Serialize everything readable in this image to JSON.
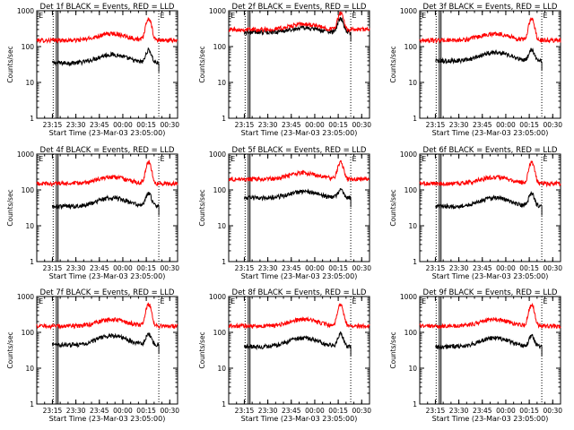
{
  "figure_title_hidden": "",
  "colors": {
    "events": "#000000",
    "lld": "#ff0000",
    "axis": "#000000"
  },
  "chart_data": [
    {
      "type": "line",
      "title": "Det 1f BLACK = Events, RED = LLD",
      "xlabel": "Start Time (23-Mar-03 23:05:00)",
      "ylabel": "Counts/sec",
      "xticks": [
        "23:15",
        "23:30",
        "23:45",
        "00:00",
        "00:15",
        "00:30"
      ],
      "yticks": [
        "1",
        "10",
        "100",
        "1000"
      ],
      "ylim": [
        1,
        1000
      ],
      "xlim_minutes": [
        0,
        90
      ],
      "marker_label": "E",
      "vlines_solid": [
        12.5,
        13.6
      ],
      "vlines_dotted": [
        10.5,
        78
      ],
      "series": [
        {
          "name": "Events",
          "start": 10,
          "end": 78,
          "base": 35,
          "peak": 60,
          "spike": 80
        },
        {
          "name": "LLD",
          "start": 0,
          "end": 90,
          "base": 150,
          "peak": 230,
          "spike": 600
        }
      ]
    },
    {
      "type": "line",
      "title": "Det 2f BLACK = Events, RED = LLD",
      "xlabel": "Start Time (23-Mar-03 23:05:00)",
      "ylabel": "Counts/sec",
      "xticks": [
        "23:15",
        "23:30",
        "23:45",
        "00:00",
        "00:15",
        "00:30"
      ],
      "yticks": [
        "1",
        "10",
        "100",
        "1000"
      ],
      "ylim": [
        1,
        1000
      ],
      "xlim_minutes": [
        0,
        90
      ],
      "marker_label": "E",
      "vlines_solid": [
        12.5,
        13.6
      ],
      "vlines_dotted": [
        10.5,
        78
      ],
      "series": [
        {
          "name": "Events",
          "start": 10,
          "end": 78,
          "base": 250,
          "peak": 330,
          "spike": 600
        },
        {
          "name": "LLD",
          "start": 0,
          "end": 90,
          "base": 300,
          "peak": 420,
          "spike": 850
        }
      ]
    },
    {
      "type": "line",
      "title": "Det 3f BLACK = Events, RED = LLD",
      "xlabel": "Start Time (23-Mar-03 23:05:00)",
      "ylabel": "Counts/sec",
      "xticks": [
        "23:15",
        "23:30",
        "23:45",
        "00:00",
        "00:15",
        "00:30"
      ],
      "yticks": [
        "1",
        "10",
        "100",
        "1000"
      ],
      "ylim": [
        1,
        1000
      ],
      "xlim_minutes": [
        0,
        90
      ],
      "marker_label": "E",
      "vlines_solid": [
        12.5,
        13.6
      ],
      "vlines_dotted": [
        10.5,
        78
      ],
      "series": [
        {
          "name": "Events",
          "start": 10,
          "end": 78,
          "base": 40,
          "peak": 70,
          "spike": 80
        },
        {
          "name": "LLD",
          "start": 0,
          "end": 90,
          "base": 150,
          "peak": 230,
          "spike": 600
        }
      ]
    },
    {
      "type": "line",
      "title": "Det 4f BLACK = Events, RED = LLD",
      "xlabel": "Start Time (23-Mar-03 23:05:00)",
      "ylabel": "Counts/sec",
      "xticks": [
        "23:15",
        "23:30",
        "23:45",
        "00:00",
        "00:15",
        "00:30"
      ],
      "yticks": [
        "1",
        "10",
        "100",
        "1000"
      ],
      "ylim": [
        1,
        1000
      ],
      "xlim_minutes": [
        0,
        90
      ],
      "marker_label": "E",
      "vlines_solid": [
        12.5,
        13.6
      ],
      "vlines_dotted": [
        10.5,
        78
      ],
      "series": [
        {
          "name": "Events",
          "start": 10,
          "end": 78,
          "base": 35,
          "peak": 60,
          "spike": 80
        },
        {
          "name": "LLD",
          "start": 0,
          "end": 90,
          "base": 150,
          "peak": 230,
          "spike": 600
        }
      ]
    },
    {
      "type": "line",
      "title": "Det 5f BLACK = Events, RED = LLD",
      "xlabel": "Start Time (23-Mar-03 23:05:00)",
      "ylabel": "Counts/sec",
      "xticks": [
        "23:15",
        "23:30",
        "23:45",
        "00:00",
        "00:15",
        "00:30"
      ],
      "yticks": [
        "1",
        "10",
        "100",
        "1000"
      ],
      "ylim": [
        1,
        1000
      ],
      "xlim_minutes": [
        0,
        90
      ],
      "marker_label": "E",
      "vlines_solid": [
        12.5,
        13.6
      ],
      "vlines_dotted": [
        10.5,
        78
      ],
      "series": [
        {
          "name": "Events",
          "start": 10,
          "end": 78,
          "base": 60,
          "peak": 90,
          "spike": 100
        },
        {
          "name": "LLD",
          "start": 0,
          "end": 90,
          "base": 200,
          "peak": 300,
          "spike": 600
        }
      ]
    },
    {
      "type": "line",
      "title": "Det 6f BLACK = Events, RED = LLD",
      "xlabel": "Start Time (23-Mar-03 23:05:00)",
      "ylabel": "Counts/sec",
      "xticks": [
        "23:15",
        "23:30",
        "23:45",
        "00:00",
        "00:15",
        "00:30"
      ],
      "yticks": [
        "1",
        "10",
        "100",
        "1000"
      ],
      "ylim": [
        1,
        1000
      ],
      "xlim_minutes": [
        0,
        90
      ],
      "marker_label": "E",
      "vlines_solid": [
        12.5,
        13.6
      ],
      "vlines_dotted": [
        10.5,
        78
      ],
      "series": [
        {
          "name": "Events",
          "start": 10,
          "end": 78,
          "base": 35,
          "peak": 60,
          "spike": 80
        },
        {
          "name": "LLD",
          "start": 0,
          "end": 90,
          "base": 150,
          "peak": 230,
          "spike": 600
        }
      ]
    },
    {
      "type": "line",
      "title": "Det 7f BLACK = Events, RED = LLD",
      "xlabel": "Start Time (23-Mar-03 23:05:00)",
      "ylabel": "Counts/sec",
      "xticks": [
        "23:15",
        "23:30",
        "23:45",
        "00:00",
        "00:15",
        "00:30"
      ],
      "yticks": [
        "1",
        "10",
        "100",
        "1000"
      ],
      "ylim": [
        1,
        1000
      ],
      "xlim_minutes": [
        0,
        90
      ],
      "marker_label": "E",
      "vlines_solid": [
        12.5,
        13.6
      ],
      "vlines_dotted": [
        10.5,
        78
      ],
      "series": [
        {
          "name": "Events",
          "start": 10,
          "end": 78,
          "base": 45,
          "peak": 80,
          "spike": 90
        },
        {
          "name": "LLD",
          "start": 0,
          "end": 90,
          "base": 150,
          "peak": 230,
          "spike": 600
        }
      ]
    },
    {
      "type": "line",
      "title": "Det 8f BLACK = Events, RED = LLD",
      "xlabel": "Start Time (23-Mar-03 23:05:00)",
      "ylabel": "Counts/sec",
      "xticks": [
        "23:15",
        "23:30",
        "23:45",
        "00:00",
        "00:15",
        "00:30"
      ],
      "yticks": [
        "1",
        "10",
        "100",
        "1000"
      ],
      "ylim": [
        1,
        1000
      ],
      "xlim_minutes": [
        0,
        90
      ],
      "marker_label": "E",
      "vlines_solid": [
        12.5,
        13.6
      ],
      "vlines_dotted": [
        10.5,
        78
      ],
      "series": [
        {
          "name": "Events",
          "start": 10,
          "end": 78,
          "base": 40,
          "peak": 70,
          "spike": 90
        },
        {
          "name": "LLD",
          "start": 0,
          "end": 90,
          "base": 150,
          "peak": 230,
          "spike": 600
        }
      ]
    },
    {
      "type": "line",
      "title": "Det 9f BLACK = Events, RED = LLD",
      "xlabel": "Start Time (23-Mar-03 23:05:00)",
      "ylabel": "Counts/sec",
      "xticks": [
        "23:15",
        "23:30",
        "23:45",
        "00:00",
        "00:15",
        "00:30"
      ],
      "yticks": [
        "1",
        "10",
        "100",
        "1000"
      ],
      "ylim": [
        1,
        1000
      ],
      "xlim_minutes": [
        0,
        90
      ],
      "marker_label": "E",
      "vlines_solid": [
        12.5,
        13.6
      ],
      "vlines_dotted": [
        10.5,
        78
      ],
      "series": [
        {
          "name": "Events",
          "start": 10,
          "end": 78,
          "base": 40,
          "peak": 70,
          "spike": 80
        },
        {
          "name": "LLD",
          "start": 0,
          "end": 90,
          "base": 150,
          "peak": 230,
          "spike": 600
        }
      ]
    }
  ]
}
